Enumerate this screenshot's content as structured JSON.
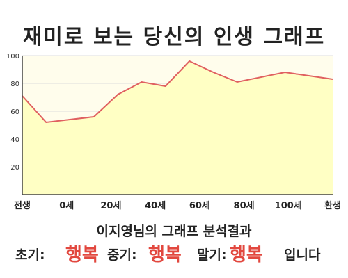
{
  "chart_data": {
    "type": "area",
    "title": "재미로 보는 당신의 인생 그래프",
    "x": [
      -10,
      0,
      20,
      30,
      40,
      50,
      60,
      70,
      80,
      100,
      120
    ],
    "values": [
      71,
      52,
      56,
      72,
      81,
      78,
      96,
      88,
      81,
      88,
      83
    ],
    "xticks": [
      "전생",
      "0세",
      "20세",
      "40세",
      "60세",
      "80세",
      "100세",
      "환생"
    ],
    "yticks": [
      20,
      40,
      60,
      80,
      100
    ],
    "ylim": [
      0,
      100
    ],
    "grid": true,
    "colors": {
      "line": "#e06060",
      "fill": "#ffffc4",
      "plot_bg": "#fffdec",
      "grid": "#dddddd"
    }
  },
  "result": {
    "summary": "이지영님의 그래프 분석결과",
    "early_label": "초기:",
    "early_value": "행복",
    "middle_label": "중기:",
    "middle_value": "행복",
    "late_label": "말기:",
    "late_value": "행복",
    "ending": "입니다"
  }
}
